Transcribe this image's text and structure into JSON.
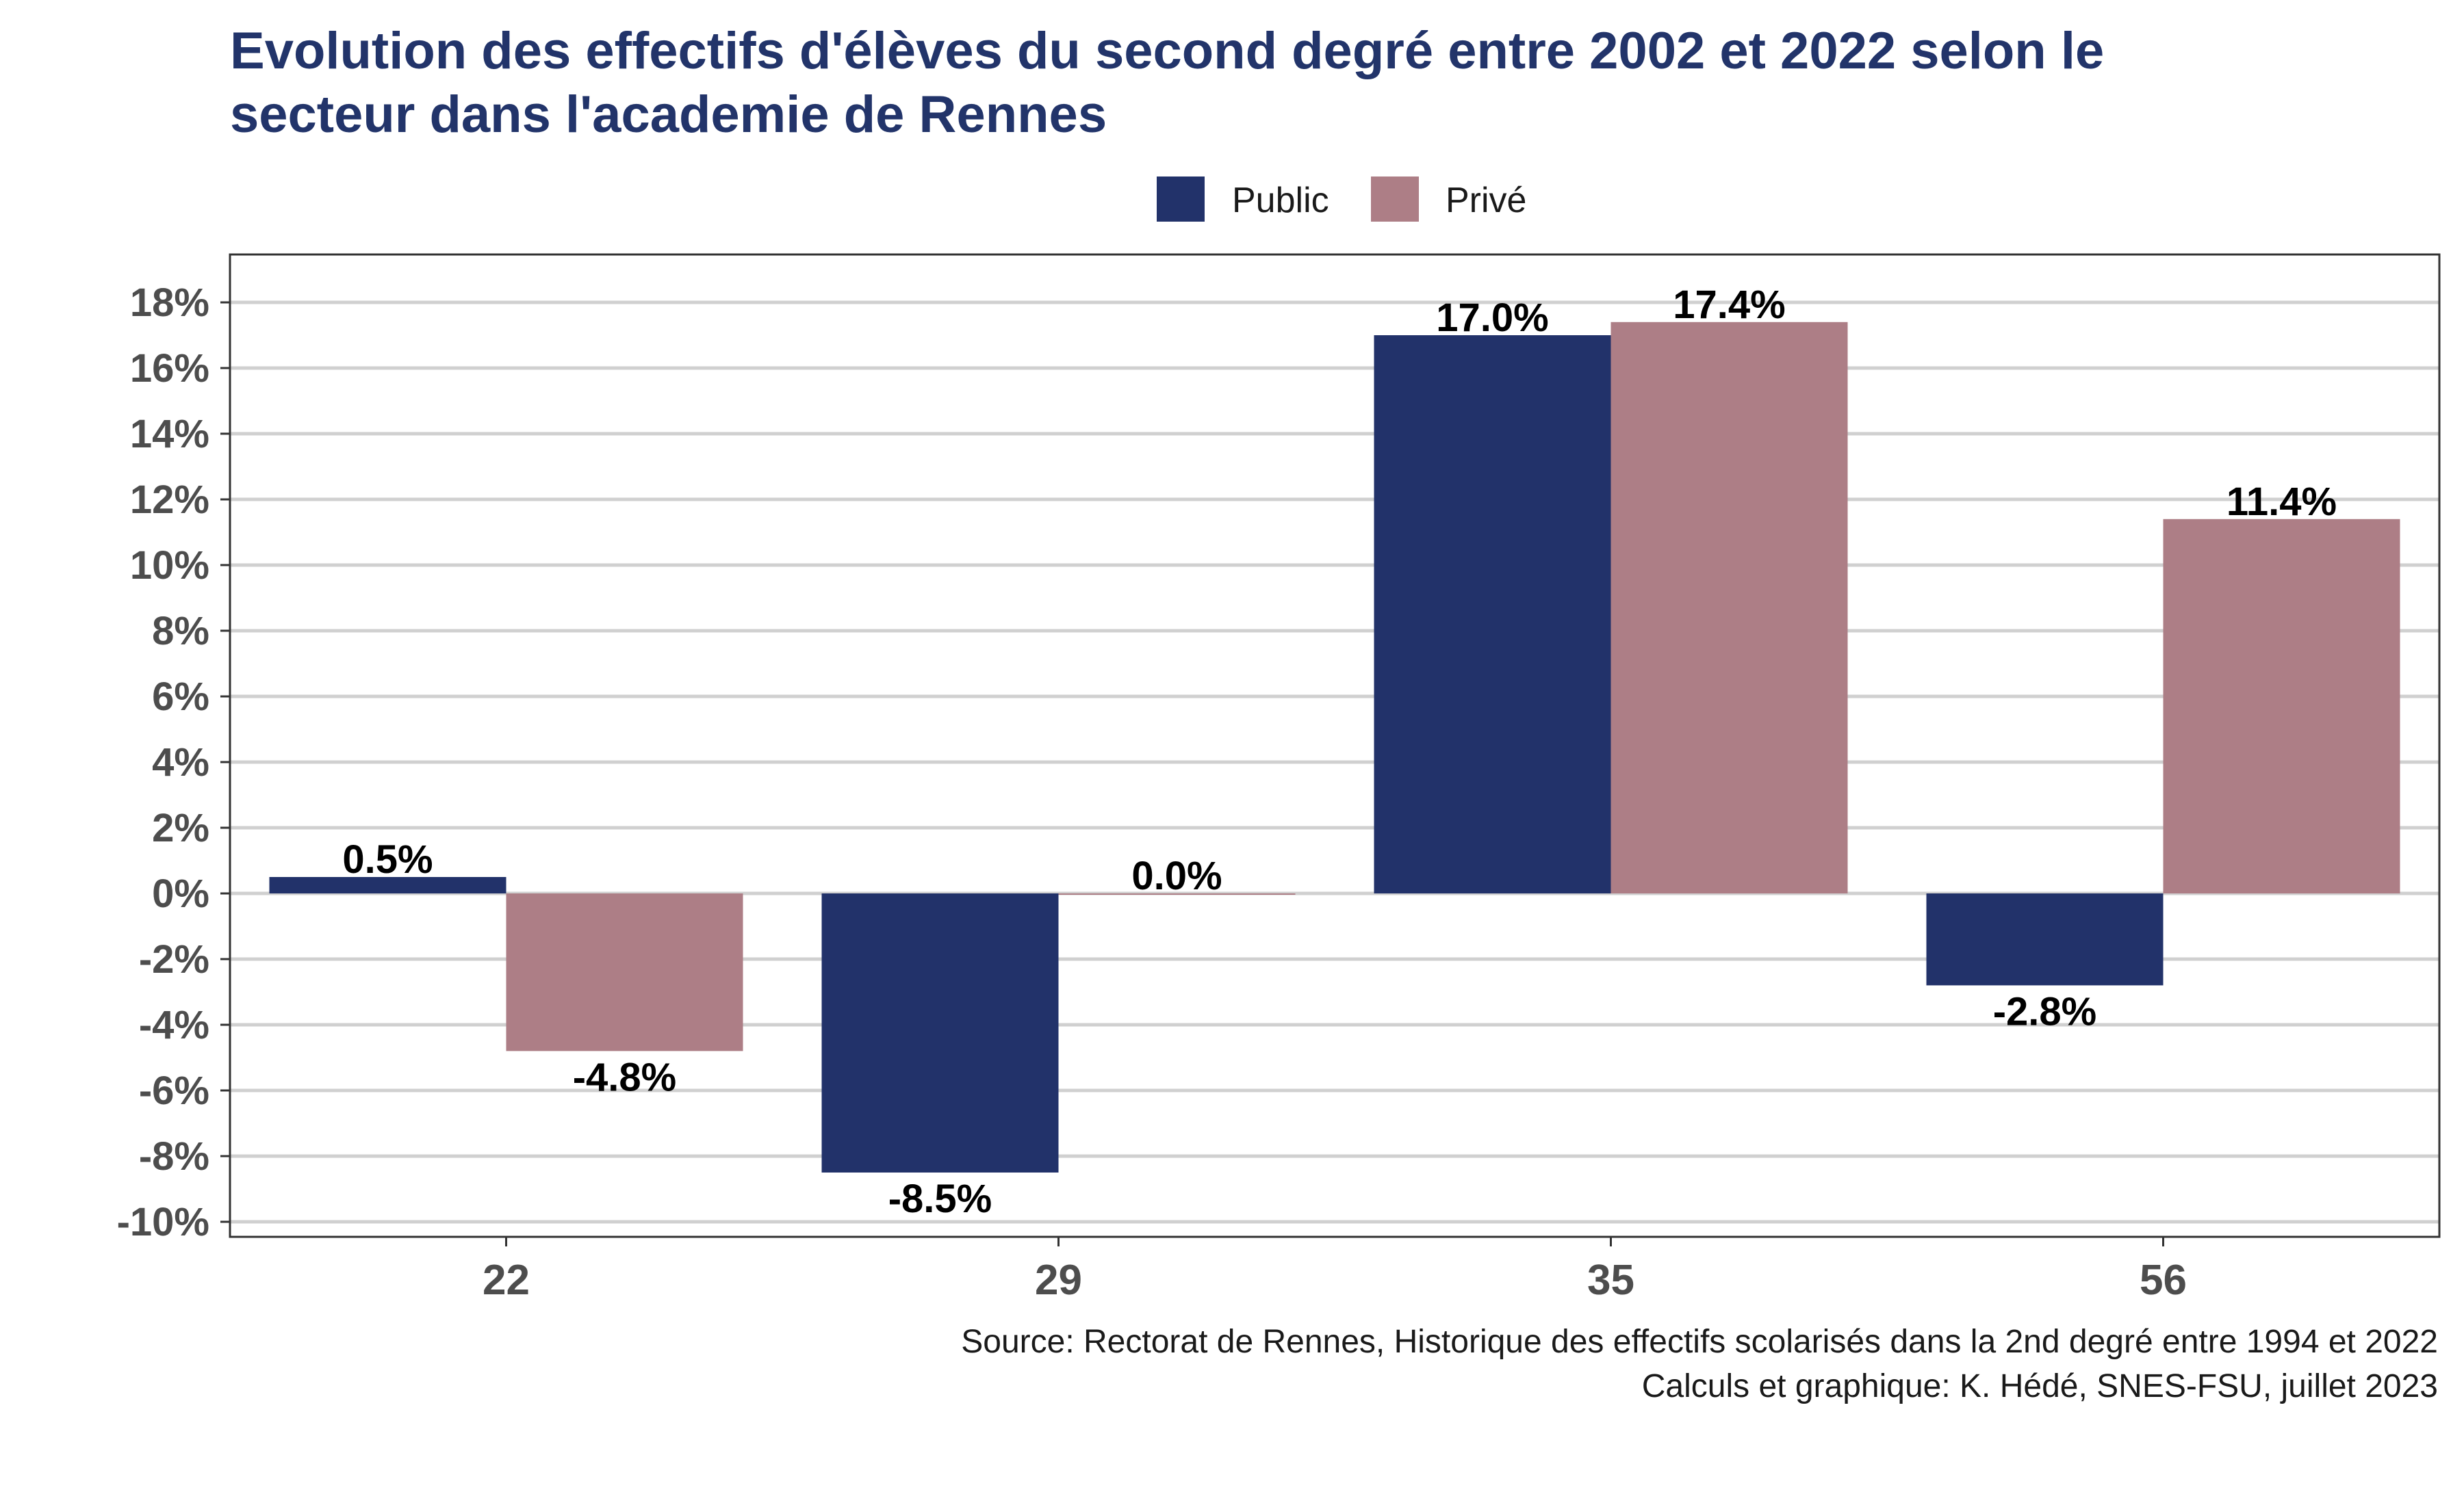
{
  "chart_data": {
    "type": "bar",
    "title_line1": "Evolution des effectifs d'élèves du second degré entre 2002 et 2022 selon le",
    "title_line2": "secteur dans l'academie de Rennes",
    "categories": [
      "22",
      "29",
      "35",
      "56"
    ],
    "series": [
      {
        "name": "Public",
        "color": "#22326a",
        "values": [
          0.5,
          -8.5,
          17.0,
          -2.8
        ],
        "labels": [
          "0.5%",
          "-8.5%",
          "17.0%",
          "-2.8%"
        ]
      },
      {
        "name": "Privé",
        "color": "#ad7e86",
        "values": [
          -4.8,
          0.0,
          17.4,
          11.4
        ],
        "labels": [
          "-4.8%",
          "0.0%",
          "17.4%",
          "11.4%"
        ]
      }
    ],
    "ylim": [
      -10,
      19
    ],
    "yticks": [
      18,
      16,
      14,
      12,
      10,
      8,
      6,
      4,
      2,
      0,
      -2,
      -4,
      -6,
      -8,
      -10
    ],
    "ytick_labels": [
      "18%",
      "16%",
      "14%",
      "12%",
      "10%",
      "8%",
      "6%",
      "4%",
      "2%",
      "0%",
      "-2%",
      "-4%",
      "-6%",
      "-8%",
      "-10%"
    ],
    "grid": true,
    "legend_position": "top",
    "xlabel": "",
    "ylabel": "",
    "caption_line1": "Source: Rectorat de Rennes, Historique des effectifs scolarisés dans la 2nd degré entre 1994 et 2022",
    "caption_line2": "Calculs et graphique: K. Hédé, SNES-FSU, juillet 2023"
  }
}
